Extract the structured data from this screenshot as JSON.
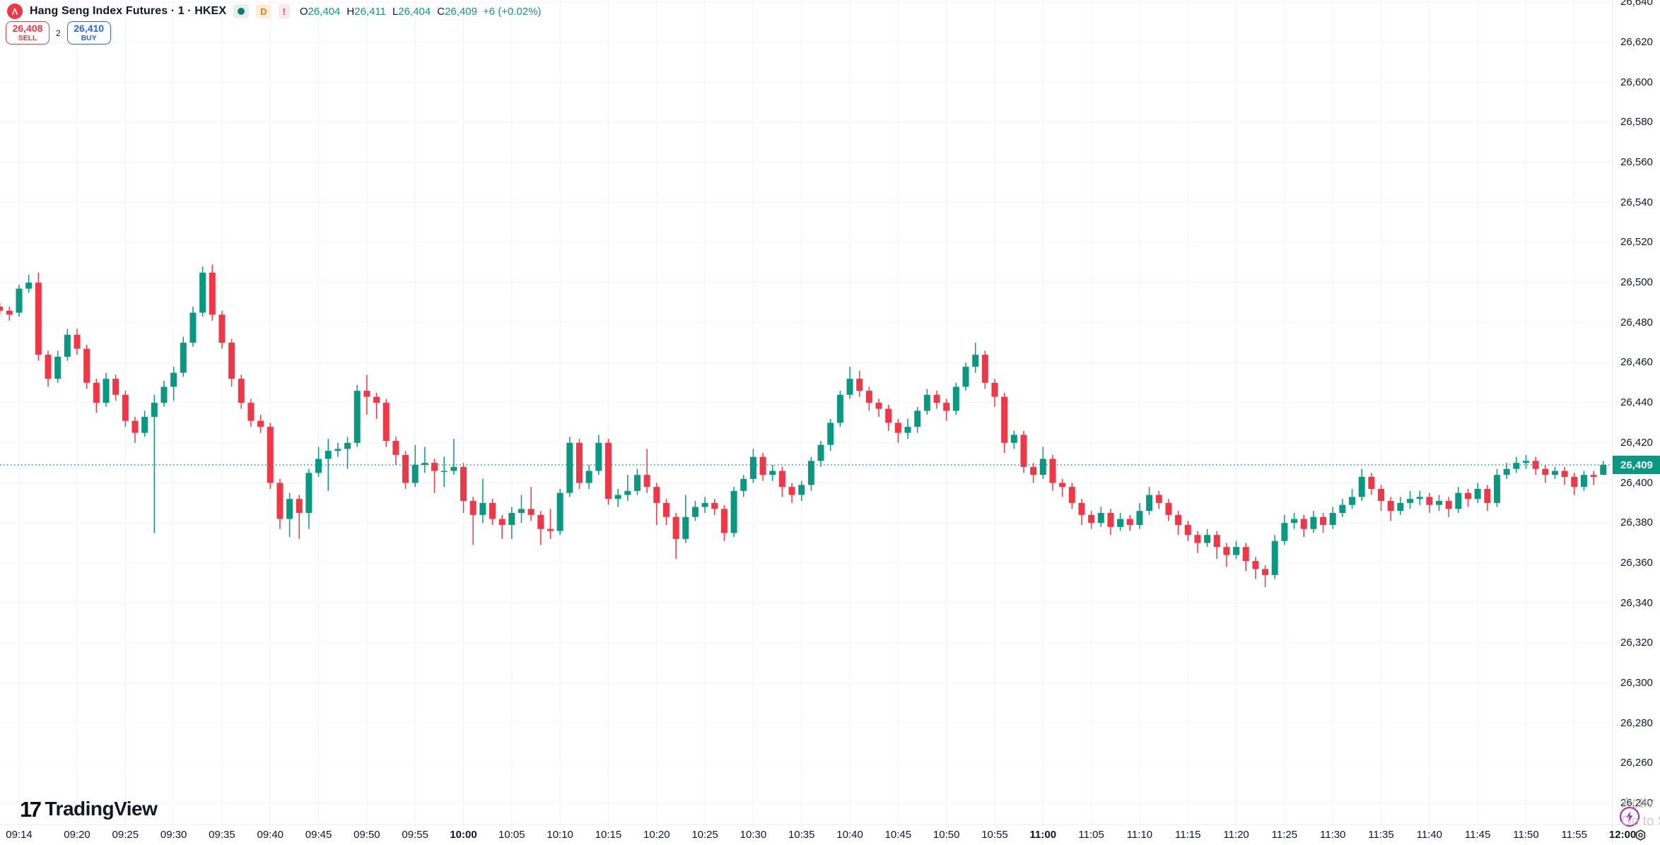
{
  "header": {
    "symbol_logo_glyph": "Λ",
    "title": "Hang Seng Index Futures · 1 · HKEX",
    "badges": {
      "daily": "D",
      "alert": "!"
    },
    "ohlc": {
      "o_label": "O",
      "o": "26,404",
      "h_label": "H",
      "h": "26,411",
      "l_label": "L",
      "l": "26,404",
      "c_label": "C",
      "c": "26,409",
      "change": "+6 (+0.02%)"
    }
  },
  "trade_panel": {
    "sell_price": "26,408",
    "sell_label": "SELL",
    "spread": "2",
    "buy_price": "26,410",
    "buy_label": "BUY"
  },
  "footer": {
    "logo_mark": "17",
    "logo_text": "TradingView"
  },
  "watermark": {
    "line1": "Activ",
    "line2": "Go to S"
  },
  "price_axis": {
    "current_price": "26,409",
    "top_value": 26640,
    "step": 20,
    "count": 21
  },
  "time_axis": {
    "ticks": [
      {
        "label": "09:14",
        "m": 2
      },
      {
        "label": "09:20",
        "m": 8
      },
      {
        "label": "09:25",
        "m": 13
      },
      {
        "label": "09:30",
        "m": 18
      },
      {
        "label": "09:35",
        "m": 23
      },
      {
        "label": "09:40",
        "m": 28
      },
      {
        "label": "09:45",
        "m": 33
      },
      {
        "label": "09:50",
        "m": 38
      },
      {
        "label": "09:55",
        "m": 43
      },
      {
        "label": "10:00",
        "m": 48,
        "bold": true
      },
      {
        "label": "10:05",
        "m": 53
      },
      {
        "label": "10:10",
        "m": 58
      },
      {
        "label": "10:15",
        "m": 63
      },
      {
        "label": "10:20",
        "m": 68
      },
      {
        "label": "10:25",
        "m": 73
      },
      {
        "label": "10:30",
        "m": 78
      },
      {
        "label": "10:35",
        "m": 83
      },
      {
        "label": "10:40",
        "m": 88
      },
      {
        "label": "10:45",
        "m": 93
      },
      {
        "label": "10:50",
        "m": 98
      },
      {
        "label": "10:55",
        "m": 103
      },
      {
        "label": "11:00",
        "m": 108,
        "bold": true
      },
      {
        "label": "11:05",
        "m": 113
      },
      {
        "label": "11:10",
        "m": 118
      },
      {
        "label": "11:15",
        "m": 123
      },
      {
        "label": "11:20",
        "m": 128
      },
      {
        "label": "11:25",
        "m": 133
      },
      {
        "label": "11:30",
        "m": 138
      },
      {
        "label": "11:35",
        "m": 143
      },
      {
        "label": "11:40",
        "m": 148
      },
      {
        "label": "11:45",
        "m": 153
      },
      {
        "label": "11:50",
        "m": 158
      },
      {
        "label": "11:55",
        "m": 163
      },
      {
        "label": "12:00",
        "m": 168,
        "bold": true
      }
    ]
  },
  "colors": {
    "up": "#089981",
    "down": "#F23645",
    "grid": "#F0F2F6",
    "axis_text": "#131722",
    "buy_blue": "#2962FF",
    "sell_red": "#F23645",
    "current_price_line": "#089981",
    "flash_purple": "#AB1FC6"
  },
  "chart_data": {
    "type": "candlestick",
    "title": "Hang Seng Index Futures",
    "interval": "1",
    "exchange": "HKEX",
    "session_start": "09:12",
    "session_end": "11:59",
    "ylim": [
      26240,
      26640
    ],
    "grid_step": 20,
    "current_price": 26409,
    "candles_ohlc": [
      [
        26488,
        26490,
        26484,
        26486
      ],
      [
        26486,
        26488,
        26481,
        26484
      ],
      [
        26485,
        26499,
        26483,
        26497
      ],
      [
        26497,
        26504,
        26495,
        26500
      ],
      [
        26500,
        26505,
        26461,
        26464
      ],
      [
        26464,
        26466,
        26448,
        26452
      ],
      [
        26452,
        26466,
        26450,
        26463
      ],
      [
        26463,
        26477,
        26461,
        26474
      ],
      [
        26474,
        26477,
        26464,
        26467
      ],
      [
        26467,
        26469,
        26447,
        26450
      ],
      [
        26450,
        26452,
        26435,
        26440
      ],
      [
        26440,
        26455,
        26438,
        26452
      ],
      [
        26452,
        26454,
        26441,
        26444
      ],
      [
        26444,
        26446,
        26428,
        26431
      ],
      [
        26431,
        26433,
        26420,
        26425
      ],
      [
        26425,
        26436,
        26423,
        26433
      ],
      [
        26433,
        26444,
        26375,
        26440
      ],
      [
        26440,
        26451,
        26438,
        26448
      ],
      [
        26448,
        26458,
        26441,
        26455
      ],
      [
        26455,
        26473,
        26453,
        26470
      ],
      [
        26470,
        26488,
        26468,
        26485
      ],
      [
        26485,
        26508,
        26483,
        26505
      ],
      [
        26505,
        26509,
        26481,
        26484
      ],
      [
        26484,
        26486,
        26467,
        26470
      ],
      [
        26470,
        26472,
        26448,
        26452
      ],
      [
        26452,
        26454,
        26437,
        26440
      ],
      [
        26440,
        26442,
        26428,
        26431
      ],
      [
        26431,
        26434,
        26425,
        26428
      ],
      [
        26428,
        26430,
        26397,
        26400
      ],
      [
        26400,
        26402,
        26377,
        26382
      ],
      [
        26382,
        26395,
        26373,
        26392
      ],
      [
        26392,
        26394,
        26372,
        26385
      ],
      [
        26385,
        26407,
        26377,
        26405
      ],
      [
        26405,
        26418,
        26403,
        26412
      ],
      [
        26412,
        26422,
        26396,
        26416
      ],
      [
        26416,
        26420,
        26413,
        26417
      ],
      [
        26417,
        26423,
        26407,
        26420
      ],
      [
        26420,
        26449,
        26418,
        26446
      ],
      [
        26446,
        26454,
        26434,
        26443
      ],
      [
        26443,
        26445,
        26432,
        26440
      ],
      [
        26440,
        26442,
        26418,
        26421
      ],
      [
        26421,
        26423,
        26409,
        26414
      ],
      [
        26414,
        26416,
        26397,
        26400
      ],
      [
        26400,
        26419,
        26398,
        26409
      ],
      [
        26409,
        26418,
        26405,
        26410
      ],
      [
        26410,
        26412,
        26395,
        26406
      ],
      [
        26406,
        26413,
        26398,
        26406
      ],
      [
        26406,
        26422,
        26404,
        26408
      ],
      [
        26408,
        26410,
        26385,
        26391
      ],
      [
        26391,
        26393,
        26369,
        26384
      ],
      [
        26384,
        26402,
        26380,
        26390
      ],
      [
        26390,
        26392,
        26379,
        26382
      ],
      [
        26382,
        26384,
        26372,
        26379
      ],
      [
        26379,
        26388,
        26372,
        26385
      ],
      [
        26385,
        26394,
        26380,
        26387
      ],
      [
        26387,
        26398,
        26381,
        26384
      ],
      [
        26384,
        26386,
        26369,
        26377
      ],
      [
        26377,
        26387,
        26372,
        26376
      ],
      [
        26376,
        26397,
        26374,
        26395
      ],
      [
        26395,
        26423,
        26393,
        26420
      ],
      [
        26420,
        26422,
        26397,
        26400
      ],
      [
        26400,
        26409,
        26397,
        26406
      ],
      [
        26406,
        26424,
        26404,
        26420
      ],
      [
        26420,
        26422,
        26389,
        26392
      ],
      [
        26392,
        26397,
        26388,
        26394
      ],
      [
        26394,
        26404,
        26391,
        26396
      ],
      [
        26396,
        26407,
        26394,
        26404
      ],
      [
        26404,
        26417,
        26395,
        26398
      ],
      [
        26398,
        26400,
        26379,
        26390
      ],
      [
        26390,
        26392,
        26379,
        26383
      ],
      [
        26383,
        26385,
        26362,
        26372
      ],
      [
        26372,
        26394,
        26370,
        26383
      ],
      [
        26383,
        26391,
        26381,
        26388
      ],
      [
        26388,
        26393,
        26385,
        26390
      ],
      [
        26390,
        26392,
        26384,
        26387
      ],
      [
        26387,
        26389,
        26371,
        26375
      ],
      [
        26375,
        26398,
        26373,
        26396
      ],
      [
        26396,
        26404,
        26393,
        26402
      ],
      [
        26402,
        26417,
        26400,
        26413
      ],
      [
        26413,
        26415,
        26401,
        26404
      ],
      [
        26404,
        26409,
        26401,
        26406
      ],
      [
        26406,
        26408,
        26393,
        26398
      ],
      [
        26398,
        26400,
        26390,
        26394
      ],
      [
        26394,
        26401,
        26391,
        26399
      ],
      [
        26399,
        26413,
        26396,
        26411
      ],
      [
        26411,
        26421,
        26408,
        26419
      ],
      [
        26419,
        26432,
        26416,
        26430
      ],
      [
        26430,
        26446,
        26428,
        26444
      ],
      [
        26444,
        26458,
        26442,
        26452
      ],
      [
        26452,
        26456,
        26443,
        26446
      ],
      [
        26446,
        26448,
        26436,
        26440
      ],
      [
        26440,
        26442,
        26433,
        26437
      ],
      [
        26437,
        26439,
        26426,
        26430
      ],
      [
        26430,
        26432,
        26420,
        26425
      ],
      [
        26425,
        26432,
        26422,
        26428
      ],
      [
        26428,
        26438,
        26425,
        26436
      ],
      [
        26436,
        26447,
        26434,
        26444
      ],
      [
        26444,
        26446,
        26437,
        26440
      ],
      [
        26440,
        26442,
        26431,
        26436
      ],
      [
        26436,
        26450,
        26434,
        26448
      ],
      [
        26448,
        26460,
        26446,
        26458
      ],
      [
        26458,
        26470,
        26455,
        26464
      ],
      [
        26464,
        26466,
        26447,
        26450
      ],
      [
        26450,
        26452,
        26438,
        26443
      ],
      [
        26443,
        26445,
        26415,
        26420
      ],
      [
        26420,
        26426,
        26417,
        26424
      ],
      [
        26424,
        26426,
        26405,
        26408
      ],
      [
        26408,
        26410,
        26400,
        26404
      ],
      [
        26404,
        26418,
        26402,
        26412
      ],
      [
        26412,
        26414,
        26396,
        26400
      ],
      [
        26400,
        26402,
        26393,
        26398
      ],
      [
        26398,
        26400,
        26387,
        26390
      ],
      [
        26390,
        26392,
        26379,
        26384
      ],
      [
        26384,
        26386,
        26377,
        26380
      ],
      [
        26380,
        26388,
        26378,
        26385
      ],
      [
        26385,
        26387,
        26374,
        26378
      ],
      [
        26378,
        26385,
        26376,
        26382
      ],
      [
        26382,
        26384,
        26376,
        26379
      ],
      [
        26379,
        26390,
        26377,
        26386
      ],
      [
        26386,
        26398,
        26384,
        26394
      ],
      [
        26394,
        26396,
        26387,
        26390
      ],
      [
        26390,
        26392,
        26381,
        26384
      ],
      [
        26384,
        26386,
        26374,
        26379
      ],
      [
        26379,
        26381,
        26371,
        26374
      ],
      [
        26374,
        26376,
        26365,
        26370
      ],
      [
        26370,
        26377,
        26368,
        26374
      ],
      [
        26374,
        26376,
        26362,
        26368
      ],
      [
        26368,
        26370,
        26358,
        26364
      ],
      [
        26364,
        26371,
        26362,
        26368
      ],
      [
        26368,
        26370,
        26356,
        26361
      ],
      [
        26361,
        26363,
        26352,
        26357
      ],
      [
        26357,
        26359,
        26348,
        26354
      ],
      [
        26354,
        26374,
        26352,
        26371
      ],
      [
        26371,
        26384,
        26369,
        26380
      ],
      [
        26380,
        26385,
        26377,
        26382
      ],
      [
        26382,
        26384,
        26373,
        26377
      ],
      [
        26377,
        26386,
        26375,
        26383
      ],
      [
        26383,
        26385,
        26375,
        26379
      ],
      [
        26379,
        26388,
        26377,
        26385
      ],
      [
        26385,
        26392,
        26383,
        26389
      ],
      [
        26389,
        26397,
        26387,
        26393
      ],
      [
        26393,
        26407,
        26391,
        26403
      ],
      [
        26403,
        26405,
        26394,
        26397
      ],
      [
        26397,
        26399,
        26386,
        26391
      ],
      [
        26391,
        26393,
        26381,
        26386
      ],
      [
        26386,
        26393,
        26384,
        26390
      ],
      [
        26390,
        26396,
        26387,
        26392
      ],
      [
        26392,
        26396,
        26389,
        26393
      ],
      [
        26393,
        26395,
        26385,
        26389
      ],
      [
        26389,
        26394,
        26386,
        26391
      ],
      [
        26391,
        26393,
        26383,
        26387
      ],
      [
        26387,
        26398,
        26385,
        26395
      ],
      [
        26395,
        26397,
        26388,
        26392
      ],
      [
        26392,
        26400,
        26390,
        26397
      ],
      [
        26397,
        26399,
        26386,
        26390
      ],
      [
        26390,
        26407,
        26388,
        26404
      ],
      [
        26404,
        26410,
        26402,
        26407
      ],
      [
        26407,
        26413,
        26405,
        26410
      ],
      [
        26410,
        26414,
        26407,
        26411
      ],
      [
        26411,
        26413,
        26404,
        26407
      ],
      [
        26407,
        26409,
        26400,
        26404
      ],
      [
        26404,
        26408,
        26402,
        26406
      ],
      [
        26406,
        26408,
        26399,
        26403
      ],
      [
        26403,
        26405,
        26394,
        26398
      ],
      [
        26398,
        26406,
        26396,
        26404
      ],
      [
        26404,
        26406,
        26399,
        26403
      ],
      [
        26404,
        26411,
        26404,
        26409
      ]
    ]
  }
}
